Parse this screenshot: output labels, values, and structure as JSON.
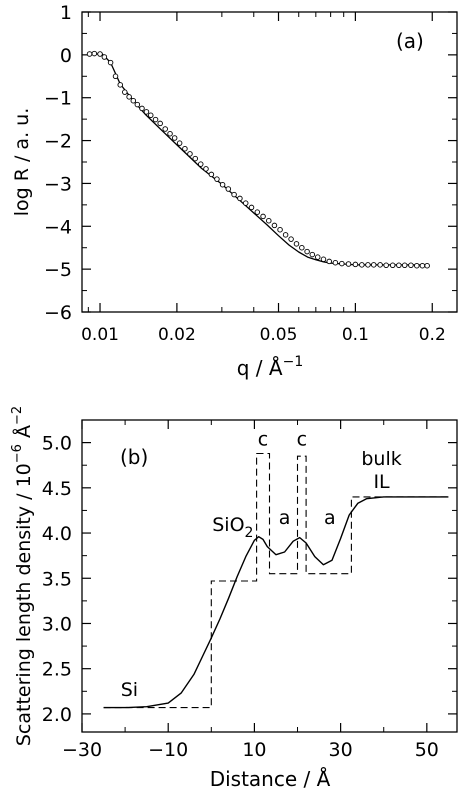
{
  "chart_data": [
    {
      "panel_label": "(a)",
      "type": "scatter",
      "xscale": "log",
      "xlabel": "q / Å",
      "xlabel_exp": "−1",
      "ylabel": "log R / a. u.",
      "xlim": [
        0.0085,
        0.25
      ],
      "ylim": [
        -6,
        1
      ],
      "xticks": [
        {
          "value": 0.01,
          "label": "0.01"
        },
        {
          "value": 0.02,
          "label": "0.02"
        },
        {
          "value": 0.05,
          "label": "0.05"
        },
        {
          "value": 0.1,
          "label": "0.1"
        },
        {
          "value": 0.2,
          "label": "0.2"
        }
      ],
      "yticks": [
        {
          "value": 1,
          "label": "1"
        },
        {
          "value": 0,
          "label": "0"
        },
        {
          "value": -1,
          "label": "−1"
        },
        {
          "value": -2,
          "label": "−2"
        },
        {
          "value": -3,
          "label": "−3"
        },
        {
          "value": -4,
          "label": "−4"
        },
        {
          "value": -5,
          "label": "−5"
        },
        {
          "value": -6,
          "label": "−6"
        }
      ],
      "fit_curve": {
        "x": [
          0.009,
          0.0102,
          0.011,
          0.012,
          0.0135,
          0.015,
          0.0175,
          0.02,
          0.025,
          0.03,
          0.035,
          0.04,
          0.045,
          0.05,
          0.055,
          0.06,
          0.065,
          0.07,
          0.075,
          0.08,
          0.09,
          0.1,
          0.12,
          0.15,
          0.19
        ],
        "y": [
          0.02,
          0.02,
          -0.18,
          -0.68,
          -1.07,
          -1.38,
          -1.77,
          -2.1,
          -2.65,
          -3.02,
          -3.38,
          -3.69,
          -3.96,
          -4.22,
          -4.44,
          -4.6,
          -4.72,
          -4.78,
          -4.83,
          -4.86,
          -4.88,
          -4.9,
          -4.9,
          -4.9,
          -4.9
        ]
      },
      "points": {
        "x": [
          0.0091,
          0.0095,
          0.01,
          0.0104,
          0.011,
          0.0115,
          0.012,
          0.0125,
          0.013,
          0.0135,
          0.014,
          0.0146,
          0.0152,
          0.0158,
          0.0165,
          0.0172,
          0.018,
          0.0188,
          0.0196,
          0.0205,
          0.0215,
          0.0225,
          0.0236,
          0.0248,
          0.026,
          0.0273,
          0.0287,
          0.0302,
          0.0318,
          0.0335,
          0.0353,
          0.0372,
          0.0392,
          0.0413,
          0.0435,
          0.0458,
          0.0482,
          0.0507,
          0.0533,
          0.056,
          0.0588,
          0.0617,
          0.0647,
          0.0678,
          0.0712,
          0.075,
          0.079,
          0.0835,
          0.0885,
          0.094,
          0.1,
          0.106,
          0.112,
          0.118,
          0.125,
          0.132,
          0.14,
          0.148,
          0.156,
          0.165,
          0.174,
          0.183,
          0.191
        ],
        "y": [
          0.02,
          0.03,
          0.02,
          -0.05,
          -0.18,
          -0.5,
          -0.7,
          -0.87,
          -0.98,
          -1.07,
          -1.16,
          -1.25,
          -1.33,
          -1.41,
          -1.51,
          -1.6,
          -1.73,
          -1.84,
          -1.94,
          -2.06,
          -2.19,
          -2.31,
          -2.42,
          -2.55,
          -2.66,
          -2.79,
          -2.9,
          -3.03,
          -3.13,
          -3.26,
          -3.35,
          -3.46,
          -3.56,
          -3.67,
          -3.77,
          -3.87,
          -3.98,
          -4.08,
          -4.2,
          -4.3,
          -4.41,
          -4.5,
          -4.59,
          -4.66,
          -4.72,
          -4.77,
          -4.82,
          -4.85,
          -4.87,
          -4.88,
          -4.89,
          -4.9,
          -4.9,
          -4.9,
          -4.9,
          -4.91,
          -4.91,
          -4.91,
          -4.91,
          -4.91,
          -4.92,
          -4.92,
          -4.92
        ]
      }
    },
    {
      "panel_label": "(b)",
      "type": "line",
      "xlabel": "Distance / Å",
      "ylabel": "Scattering length density / 10",
      "ylabel_exp": "−6",
      "ylabel_unit": "Å",
      "ylabel_unit_exp": "−2",
      "xlim": [
        -30,
        57
      ],
      "ylim": [
        1.8,
        5.25
      ],
      "xticks": [
        {
          "value": -30,
          "label": "−30"
        },
        {
          "value": -10,
          "label": "−10"
        },
        {
          "value": 10,
          "label": "10"
        },
        {
          "value": 30,
          "label": "30"
        },
        {
          "value": 50,
          "label": "50"
        }
      ],
      "yticks": [
        {
          "value": 2.0,
          "label": "2.0"
        },
        {
          "value": 2.5,
          "label": "2.5"
        },
        {
          "value": 3.0,
          "label": "3.0"
        },
        {
          "value": 3.5,
          "label": "3.5"
        },
        {
          "value": 4.0,
          "label": "4.0"
        },
        {
          "value": 4.5,
          "label": "4.5"
        },
        {
          "value": 5.0,
          "label": "5.0"
        }
      ],
      "smooth_profile": {
        "x": [
          -25,
          -20,
          -15,
          -10,
          -7,
          -4,
          -2,
          0,
          2,
          4,
          6,
          8,
          10,
          11,
          12,
          13,
          15,
          17,
          19,
          20.5,
          22,
          24,
          26,
          28,
          30,
          32,
          34,
          36,
          38,
          40,
          45,
          55
        ],
        "y": [
          2.07,
          2.07,
          2.08,
          2.12,
          2.23,
          2.44,
          2.64,
          2.84,
          3.05,
          3.28,
          3.52,
          3.74,
          3.92,
          3.96,
          3.93,
          3.85,
          3.76,
          3.79,
          3.91,
          3.95,
          3.89,
          3.74,
          3.65,
          3.7,
          3.94,
          4.2,
          4.33,
          4.38,
          4.39,
          4.4,
          4.4,
          4.4
        ]
      },
      "slab_profile": {
        "x": [
          -25,
          0,
          0,
          10.5,
          10.5,
          13.5,
          13.5,
          20,
          20,
          22,
          22,
          32.5,
          32.5,
          55
        ],
        "y": [
          2.07,
          2.07,
          3.47,
          3.47,
          4.88,
          4.88,
          3.55,
          3.55,
          4.85,
          4.85,
          3.55,
          3.55,
          4.4,
          4.4
        ]
      },
      "annotations": [
        {
          "text": "Si",
          "x": -19,
          "y": 2.2
        },
        {
          "text": "SiO",
          "sub": "2",
          "x": 5,
          "y": 4.02
        },
        {
          "text": "c",
          "x": 12,
          "y": 4.97
        },
        {
          "text": "c",
          "x": 21,
          "y": 4.97
        },
        {
          "text": "a",
          "x": 17,
          "y": 4.1
        },
        {
          "text": "a",
          "x": 27.5,
          "y": 4.1
        },
        {
          "text": "bulk",
          "x": 39.5,
          "y": 4.75
        },
        {
          "text": "IL",
          "x": 39.5,
          "y": 4.5
        }
      ]
    }
  ]
}
